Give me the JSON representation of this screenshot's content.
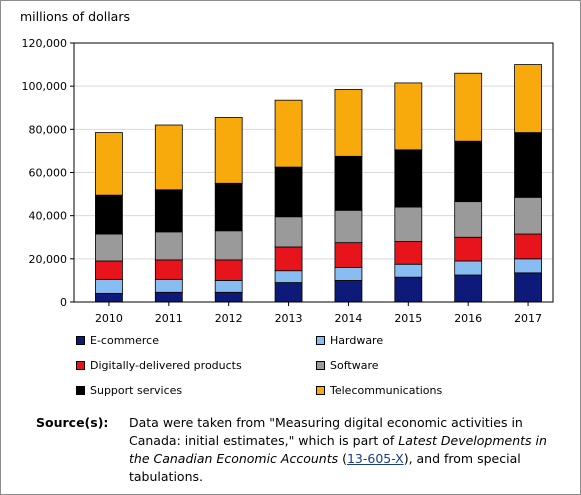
{
  "chart_data": {
    "type": "bar",
    "stacked": true,
    "title": "",
    "ylabel": "millions of dollars",
    "xlabel": "",
    "ylim": [
      0,
      120000
    ],
    "yticks": [
      "0",
      "20,000",
      "40,000",
      "60,000",
      "80,000",
      "100,000",
      "120,000"
    ],
    "categories": [
      "2010",
      "2011",
      "2012",
      "2013",
      "2014",
      "2015",
      "2016",
      "2017"
    ],
    "grid": true,
    "legend_position": "bottom",
    "series": [
      {
        "name": "E-commerce",
        "color": "#0d1a7a",
        "values": [
          4000,
          4500,
          4500,
          9000,
          10000,
          11500,
          12500,
          13500
        ]
      },
      {
        "name": "Hardware",
        "color": "#87bdf0",
        "values": [
          6500,
          6000,
          5500,
          5500,
          6000,
          6000,
          6500,
          6500
        ]
      },
      {
        "name": "Digitally-delivered products",
        "color": "#e8141c",
        "values": [
          8500,
          9000,
          9500,
          11000,
          11500,
          10500,
          11000,
          11500
        ]
      },
      {
        "name": "Software",
        "color": "#9a9a9a",
        "values": [
          12500,
          13000,
          13500,
          14000,
          15000,
          16000,
          16500,
          17000
        ]
      },
      {
        "name": "Support services",
        "color": "#000000",
        "values": [
          18000,
          19500,
          22000,
          23000,
          25000,
          26500,
          28000,
          30000
        ]
      },
      {
        "name": "Telecommunications",
        "color": "#f8a90c",
        "values": [
          29000,
          30000,
          30500,
          31000,
          31000,
          31000,
          31500,
          31500
        ]
      }
    ]
  },
  "source": {
    "label": "Source(s):",
    "text_before": "Data were taken from \"Measuring digital economic activities in Canada: initial estimates,\" which is part of ",
    "italic_title": "Latest Developments in the Canadian Economic Accounts",
    "open_paren": " (",
    "link_text": "13-605-X",
    "text_after": "), and from special tabulations."
  }
}
